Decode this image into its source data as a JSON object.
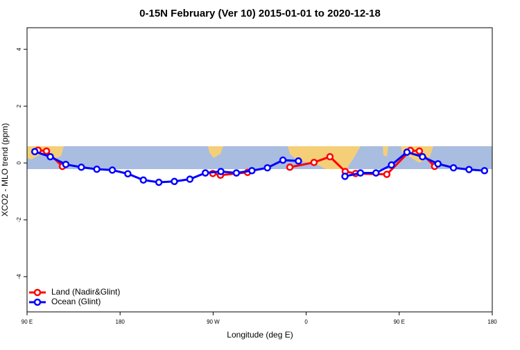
{
  "chart_data": {
    "type": "line",
    "title": "0-15N February (Ver 10)   2015-01-01 to 2020-12-18",
    "x_label": "Longitude (deg E)",
    "y_label": "XCO2 - MLO trend (ppm)",
    "xlim": [
      90,
      540
    ],
    "xticks": [
      {
        "value": 90,
        "label": "90 E"
      },
      {
        "value": 180,
        "label": "180"
      },
      {
        "value": 270,
        "label": "90 W"
      },
      {
        "value": 360,
        "label": "0"
      },
      {
        "value": 450,
        "label": "90 E"
      },
      {
        "value": 540,
        "label": "180"
      }
    ],
    "ylim": [
      -5.24,
      4.76
    ],
    "yticks": [
      -4,
      -2,
      0,
      2,
      4
    ],
    "legend": "bottom-left",
    "series": [
      {
        "name": "Land (Nadir&Glint)",
        "color": "#ff0000",
        "x": [
          100.7,
          108.8,
          124.2,
          269.7,
          277.1,
          303.3,
          344.2,
          367.6,
          383.0,
          397.8,
          407.8,
          438.0,
          460.8,
          469.5,
          484.2
        ],
        "values": [
          0.45,
          0.42,
          -0.12,
          -0.37,
          -0.43,
          -0.33,
          -0.15,
          0.02,
          0.22,
          -0.3,
          -0.37,
          -0.4,
          0.44,
          0.42,
          -0.12
        ]
      },
      {
        "name": "Ocean (Glint)",
        "color": "#0000ff",
        "x": [
          97.5,
          112.5,
          127.5,
          142.5,
          157.5,
          172.5,
          187.5,
          202.5,
          217.5,
          232.5,
          247.5,
          262.5,
          277.5,
          292.5,
          307.5,
          322.5,
          337.5,
          352.5,
          397.5,
          412.5,
          427.5,
          442.5,
          457.5,
          472.5,
          487.5,
          502.5,
          517.5,
          532.5
        ],
        "values": [
          0.4,
          0.22,
          -0.05,
          -0.15,
          -0.22,
          -0.25,
          -0.38,
          -0.6,
          -0.68,
          -0.65,
          -0.57,
          -0.35,
          -0.3,
          -0.35,
          -0.27,
          -0.17,
          0.1,
          0.07,
          -0.47,
          -0.35,
          -0.35,
          -0.07,
          0.38,
          0.22,
          -0.03,
          -0.17,
          -0.23,
          -0.27
        ]
      }
    ]
  }
}
